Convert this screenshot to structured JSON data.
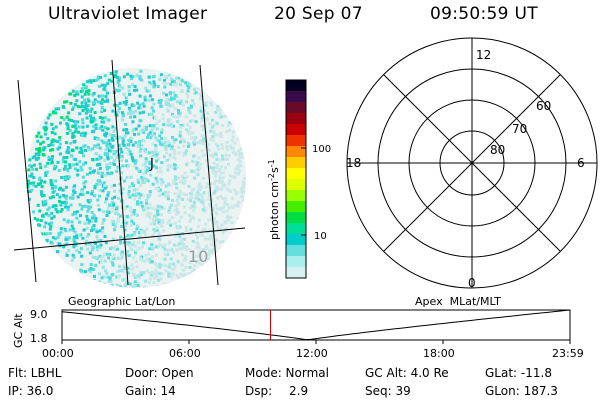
{
  "header": {
    "instrument": "Ultraviolet Imager",
    "date": "20 Sep 07",
    "time": "09:50:59 UT"
  },
  "image_panel": {
    "grid_labels": [
      "J",
      "10"
    ]
  },
  "colorbar": {
    "label": "photon cm",
    "label_exp1": "-2",
    "label_mid": "s",
    "label_exp2": "-1",
    "ticks": [
      "100",
      "10"
    ],
    "scale": "log",
    "colors": [
      "#000020",
      "#3a0a4a",
      "#6a0a2a",
      "#9a0010",
      "#cc0000",
      "#ee3300",
      "#ff8800",
      "#ffcc00",
      "#ffff00",
      "#ddff00",
      "#99ff00",
      "#44ee00",
      "#00dd44",
      "#00dd99",
      "#00cccc",
      "#66dddd",
      "#aaeeee",
      "#d8f0f0"
    ]
  },
  "polar_plot": {
    "mlt_labels": {
      "top": "12",
      "left": "18",
      "right": "6",
      "bottom": "0"
    },
    "lat_labels": [
      "60",
      "70",
      "80"
    ]
  },
  "orbit_plot": {
    "y_label": "GC Alt",
    "y_ticks": [
      "9.0",
      "1.8"
    ],
    "left_label": "Geographic Lat/Lon",
    "right_label": "Apex  MLat/MLT",
    "x_ticks": [
      "00:00",
      "06:00",
      "12:00",
      "18:00",
      "23:59"
    ],
    "current_time_hours": 9.85,
    "alt_range": [
      1.8,
      9.0
    ]
  },
  "info": {
    "filter": "Flt: LBHL",
    "door": "Door: Open",
    "mode": "Mode: Normal",
    "gc_alt": "GC Alt: 4.0 Re",
    "glat": "GLat: -11.8",
    "ip": "IP: 36.0",
    "gain": "Gain: 14",
    "dsp_label": "Dsp:",
    "dsp_value": "2.9",
    "seq": "Seq: 39",
    "glon": "GLon: 187.3"
  }
}
